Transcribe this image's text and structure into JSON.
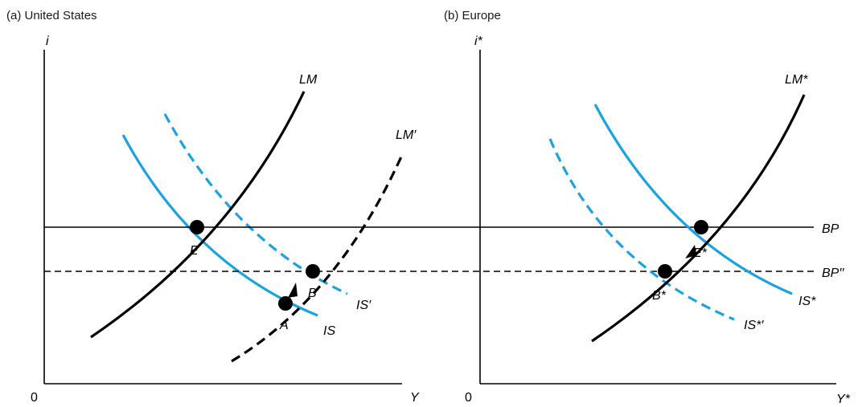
{
  "colors": {
    "axis": "#000000",
    "lm": "#000000",
    "is": "#1aa3e0",
    "bp": "#000000",
    "point": "#000000"
  },
  "panels": {
    "us": {
      "title": "(a) United States",
      "y_axis_label": "i",
      "x_axis_label": "Y",
      "origin_label": "0",
      "curves": {
        "lm": "LM",
        "lm_prime": "LM′",
        "is": "IS",
        "is_prime": "IS′"
      },
      "points": {
        "e": "E",
        "a": "A",
        "b": "B"
      }
    },
    "europe": {
      "title": "(b) Europe",
      "y_axis_label": "i*",
      "x_axis_label": "Y*",
      "origin_label": "0",
      "curves": {
        "lm": "LM*",
        "is": "IS*",
        "is_prime": "IS*′"
      },
      "points": {
        "e": "E*",
        "b": "B*"
      }
    }
  },
  "bp_lines": {
    "bp": "BP",
    "bp_double_prime": "BP′′"
  }
}
